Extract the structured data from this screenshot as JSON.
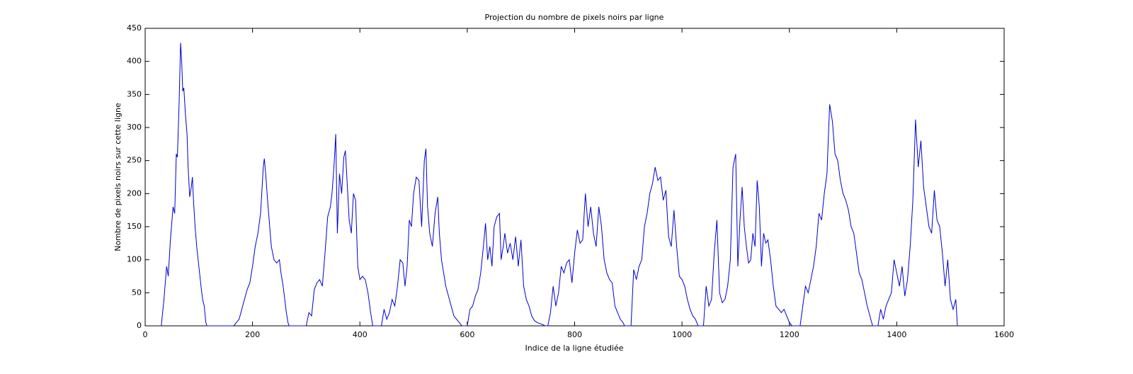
{
  "chart_data": {
    "type": "line",
    "title": "Projection du nombre de pixels noirs par ligne",
    "x_label": "Indice de la ligne étudiée",
    "y_label": "Nombre de pixels noirs sur cette ligne",
    "x": [
      30,
      35,
      40,
      43,
      47,
      52,
      55,
      58,
      60,
      63,
      66,
      68,
      70,
      72,
      75,
      78,
      80,
      83,
      86,
      88,
      90,
      93,
      96,
      100,
      104,
      107,
      110,
      113,
      115,
      165,
      175,
      180,
      185,
      190,
      195,
      200,
      205,
      210,
      215,
      220,
      222,
      225,
      228,
      232,
      235,
      240,
      245,
      250,
      253,
      257,
      260,
      263,
      266,
      268,
      300,
      305,
      310,
      315,
      320,
      325,
      330,
      335,
      340,
      345,
      348,
      352,
      355,
      358,
      362,
      366,
      370,
      373,
      376,
      380,
      384,
      388,
      392,
      396,
      400,
      405,
      410,
      415,
      420,
      424,
      440,
      445,
      450,
      455,
      460,
      465,
      470,
      475,
      480,
      484,
      488,
      492,
      496,
      500,
      505,
      510,
      515,
      520,
      523,
      526,
      530,
      535,
      540,
      545,
      548,
      552,
      556,
      560,
      565,
      570,
      575,
      580,
      585,
      590,
      600,
      605,
      610,
      615,
      620,
      625,
      630,
      634,
      638,
      642,
      646,
      650,
      655,
      660,
      663,
      667,
      670,
      675,
      680,
      685,
      690,
      695,
      700,
      705,
      710,
      715,
      720,
      725,
      730,
      740,
      745,
      750,
      755,
      760,
      765,
      770,
      775,
      780,
      785,
      790,
      795,
      800,
      805,
      810,
      815,
      820,
      825,
      830,
      835,
      840,
      845,
      850,
      855,
      860,
      865,
      870,
      875,
      880,
      885,
      890,
      893,
      905,
      910,
      915,
      920,
      925,
      930,
      935,
      940,
      945,
      950,
      955,
      960,
      965,
      970,
      975,
      980,
      985,
      990,
      995,
      1000,
      1005,
      1010,
      1015,
      1020,
      1025,
      1030,
      1040,
      1045,
      1050,
      1055,
      1060,
      1065,
      1070,
      1075,
      1080,
      1085,
      1090,
      1095,
      1100,
      1104,
      1108,
      1112,
      1116,
      1120,
      1124,
      1128,
      1132,
      1136,
      1140,
      1144,
      1148,
      1152,
      1156,
      1160,
      1165,
      1170,
      1175,
      1180,
      1185,
      1190,
      1195,
      1200,
      1205,
      1220,
      1225,
      1230,
      1235,
      1240,
      1245,
      1250,
      1255,
      1260,
      1265,
      1270,
      1275,
      1280,
      1285,
      1290,
      1295,
      1300,
      1305,
      1310,
      1315,
      1320,
      1325,
      1330,
      1335,
      1340,
      1345,
      1350,
      1355,
      1365,
      1370,
      1375,
      1380,
      1385,
      1390,
      1395,
      1400,
      1405,
      1410,
      1415,
      1420,
      1425,
      1430,
      1435,
      1440,
      1445,
      1450,
      1455,
      1460,
      1465,
      1470,
      1475,
      1480,
      1485,
      1490,
      1495,
      1500,
      1505,
      1510,
      1513
    ],
    "series": [
      {
        "color": "#0000d0",
        "values": [
          0,
          40,
          90,
          75,
          130,
          180,
          170,
          260,
          255,
          330,
          428,
          400,
          355,
          360,
          320,
          290,
          240,
          195,
          210,
          225,
          190,
          150,
          120,
          90,
          60,
          40,
          30,
          5,
          0,
          0,
          10,
          25,
          40,
          55,
          65,
          90,
          120,
          140,
          170,
          240,
          253,
          225,
          190,
          150,
          120,
          100,
          95,
          100,
          80,
          60,
          40,
          20,
          5,
          0,
          0,
          20,
          15,
          55,
          65,
          70,
          60,
          110,
          165,
          180,
          200,
          245,
          290,
          140,
          230,
          200,
          255,
          265,
          220,
          160,
          140,
          200,
          190,
          90,
          70,
          75,
          70,
          50,
          20,
          0,
          0,
          25,
          10,
          20,
          40,
          30,
          60,
          100,
          95,
          60,
          90,
          160,
          150,
          200,
          225,
          220,
          150,
          250,
          268,
          180,
          140,
          120,
          170,
          195,
          140,
          100,
          80,
          60,
          45,
          30,
          15,
          10,
          5,
          0,
          0,
          25,
          30,
          45,
          55,
          80,
          120,
          155,
          100,
          120,
          90,
          150,
          165,
          170,
          100,
          120,
          140,
          110,
          125,
          100,
          135,
          90,
          130,
          60,
          40,
          30,
          15,
          8,
          5,
          2,
          0,
          0,
          20,
          60,
          30,
          50,
          90,
          80,
          95,
          100,
          65,
          110,
          145,
          125,
          130,
          200,
          150,
          180,
          140,
          120,
          180,
          150,
          100,
          80,
          70,
          65,
          30,
          20,
          10,
          5,
          0,
          0,
          85,
          70,
          90,
          100,
          150,
          170,
          200,
          215,
          240,
          220,
          225,
          190,
          205,
          135,
          120,
          175,
          120,
          75,
          70,
          60,
          40,
          25,
          15,
          10,
          0,
          0,
          60,
          30,
          40,
          110,
          160,
          50,
          35,
          40,
          60,
          100,
          240,
          260,
          90,
          160,
          210,
          150,
          120,
          95,
          100,
          140,
          120,
          220,
          180,
          90,
          140,
          125,
          130,
          100,
          60,
          30,
          25,
          20,
          25,
          15,
          5,
          0,
          0,
          30,
          60,
          50,
          70,
          90,
          120,
          170,
          160,
          200,
          230,
          335,
          310,
          260,
          250,
          220,
          200,
          190,
          175,
          150,
          140,
          110,
          80,
          70,
          50,
          30,
          15,
          0,
          0,
          25,
          10,
          30,
          40,
          50,
          100,
          80,
          60,
          90,
          45,
          70,
          120,
          190,
          312,
          240,
          280,
          210,
          180,
          150,
          140,
          205,
          160,
          150,
          110,
          60,
          100,
          40,
          25,
          40,
          0
        ]
      }
    ],
    "xlim": [
      0,
      1600
    ],
    "xticks": [
      0,
      200,
      400,
      600,
      800,
      1000,
      1200,
      1400,
      1600
    ],
    "ylim": [
      0,
      450
    ],
    "yticks": [
      0,
      50,
      100,
      150,
      200,
      250,
      300,
      350,
      400,
      450
    ]
  }
}
